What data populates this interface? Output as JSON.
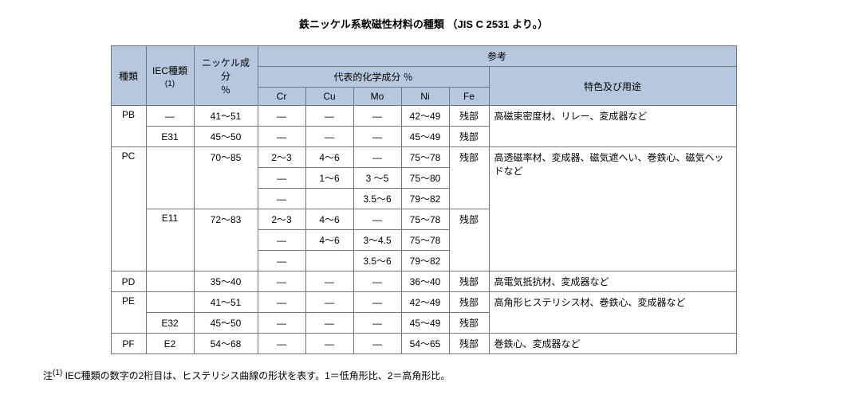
{
  "title": "鉄ニッケル系軟磁性材料の種類 （JIS C 2531 より。）",
  "headers": {
    "type": "種類",
    "iec": "IEC種類",
    "iec_note": "(1)",
    "ni_component": "ニッケル成分",
    "percent": "％",
    "reference": "参考",
    "composition": "代表的化学成分 ％",
    "features": "特色及び用途",
    "cr": "Cr",
    "cu": "Cu",
    "mo": "Mo",
    "ni": "Ni",
    "fe": "Fe"
  },
  "colors": {
    "header_bg": "#b6c8dd",
    "border": "#777777"
  },
  "rows": [
    {
      "type": "PB",
      "iec": "—",
      "nipct": "41～51",
      "cr": "—",
      "cu": "—",
      "mo": "—",
      "ni": "42～49",
      "fe": "残部",
      "use": "高磁束密度材、リレー、変成器など"
    },
    {
      "type": "",
      "iec": "E31",
      "nipct": "45～50",
      "cr": "—",
      "cu": "—",
      "mo": "—",
      "ni": "45～49",
      "fe": "残部",
      "use": ""
    },
    {
      "type": "PC",
      "iec": "",
      "nipct": "70～85",
      "cr": "2～3",
      "cu": "4～6",
      "mo": "—",
      "ni": "75～78",
      "fe": "残部",
      "use": "高透磁率材、変成器、磁気遮へい、巻鉄心、磁気ヘッドなど"
    },
    {
      "type": "",
      "iec": "",
      "nipct": "",
      "cr": "—",
      "cu": "1～6",
      "mo": "3 ～5",
      "ni": "75～80",
      "fe": "",
      "use": ""
    },
    {
      "type": "",
      "iec": "",
      "nipct": "",
      "cr": "—",
      "cu": "",
      "mo": "3.5～6",
      "ni": "79～82",
      "fe": "",
      "use": ""
    },
    {
      "type": "",
      "iec": "E11",
      "nipct": "72～83",
      "cr": "2～3",
      "cu": "4～6",
      "mo": "—",
      "ni": "75～78",
      "fe": "残部",
      "use": ""
    },
    {
      "type": "",
      "iec": "",
      "nipct": "",
      "cr": "—",
      "cu": "4～6",
      "mo": "3～4.5",
      "ni": "75～78",
      "fe": "",
      "use": ""
    },
    {
      "type": "",
      "iec": "",
      "nipct": "",
      "cr": "—",
      "cu": "",
      "mo": "3.5～6",
      "ni": "79～82",
      "fe": "",
      "use": ""
    },
    {
      "type": "PD",
      "iec": "",
      "nipct": "35～40",
      "cr": "—",
      "cu": "—",
      "mo": "—",
      "ni": "36～40",
      "fe": "残部",
      "use": "高電気抵抗材、変成器など"
    },
    {
      "type": "PE",
      "iec": "",
      "nipct": "41～51",
      "cr": "—",
      "cu": "—",
      "mo": "—",
      "ni": "42～49",
      "fe": "残部",
      "use": "高角形ヒステリシス材、巻鉄心、変成器など"
    },
    {
      "type": "",
      "iec": "E32",
      "nipct": "45～50",
      "cr": "—",
      "cu": "—",
      "mo": "—",
      "ni": "45～49",
      "fe": "残部",
      "use": ""
    },
    {
      "type": "PF",
      "iec": "E2",
      "nipct": "54～68",
      "cr": "—",
      "cu": "—",
      "mo": "—",
      "ni": "54～65",
      "fe": "残部",
      "use": "巻鉄心、変成器など"
    }
  ],
  "colwidths": {
    "type": 44,
    "iec": 60,
    "nipct": 80,
    "chem": 60,
    "fe": 50,
    "use": 310
  },
  "note_label": "注",
  "note_sup": "(1)",
  "note_text": " IEC種類の数字の2桁目は、ヒステリシス曲線の形状を表す。1＝低角形比、2＝高角形比。"
}
